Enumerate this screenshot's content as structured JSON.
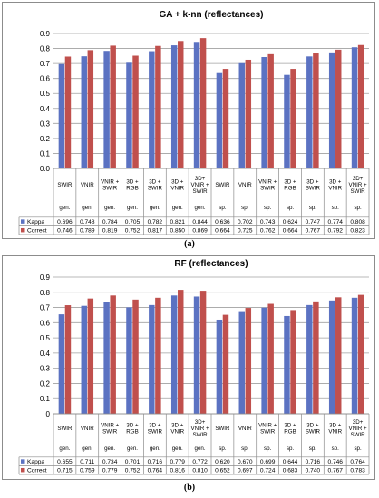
{
  "chart_data": [
    {
      "type": "bar",
      "title": "GA + k-nn (reflectances)",
      "ylim": [
        0,
        0.9
      ],
      "yticks": [
        "0.0",
        "0.1",
        "0.2",
        "0.3",
        "0.4",
        "0.5",
        "0.6",
        "0.7",
        "0.8",
        "0.9"
      ],
      "grid": true,
      "legend": "data-table",
      "categories": [
        {
          "name": [
            "SWIR"
          ],
          "group": "gen."
        },
        {
          "name": [
            "VNIR"
          ],
          "group": "gen."
        },
        {
          "name": [
            "VNIR +",
            "SWIR"
          ],
          "group": "gen."
        },
        {
          "name": [
            "3D +",
            "RGB"
          ],
          "group": "gen."
        },
        {
          "name": [
            "3D +",
            "SWIR"
          ],
          "group": "gen."
        },
        {
          "name": [
            "3D +",
            "VNIR"
          ],
          "group": "gen."
        },
        {
          "name": [
            "3D+",
            "VNIR +",
            "SWIR"
          ],
          "group": "gen."
        },
        {
          "name": [
            "SWIR"
          ],
          "group": "sp."
        },
        {
          "name": [
            "VNIR"
          ],
          "group": "sp."
        },
        {
          "name": [
            "VNIR +",
            "SWIR"
          ],
          "group": "sp."
        },
        {
          "name": [
            "3D +",
            "RGB"
          ],
          "group": "sp."
        },
        {
          "name": [
            "3D +",
            "SWIR"
          ],
          "group": "sp."
        },
        {
          "name": [
            "3D +",
            "VNIR"
          ],
          "group": "sp."
        },
        {
          "name": [
            "3D+",
            "VNIR +",
            "SWIR"
          ],
          "group": "sp."
        }
      ],
      "series": [
        {
          "name": "Kappa",
          "color": "#5b72c2",
          "values": [
            0.696,
            0.748,
            0.784,
            0.705,
            0.782,
            0.821,
            0.844,
            0.636,
            0.702,
            0.743,
            0.624,
            0.747,
            0.774,
            0.808
          ]
        },
        {
          "name": "Correct",
          "color": "#c0504d",
          "values": [
            0.746,
            0.789,
            0.819,
            0.752,
            0.817,
            0.85,
            0.869,
            0.664,
            0.725,
            0.762,
            0.664,
            0.767,
            0.792,
            0.823
          ]
        }
      ]
    },
    {
      "type": "bar",
      "title": "RF (reflectances)",
      "ylim": [
        0,
        0.9
      ],
      "yticks": [
        "0",
        "0.1",
        "0.2",
        "0.3",
        "0.4",
        "0.5",
        "0.6",
        "0.7",
        "0.8",
        "0.9"
      ],
      "grid": true,
      "legend": "data-table",
      "categories": [
        {
          "name": [
            "SWIR"
          ],
          "group": "gen."
        },
        {
          "name": [
            "VNIR"
          ],
          "group": "gen."
        },
        {
          "name": [
            "VNIR +",
            "SWIR"
          ],
          "group": "gen."
        },
        {
          "name": [
            "3D +",
            "RGB"
          ],
          "group": "gen."
        },
        {
          "name": [
            "3D +",
            "SWIR"
          ],
          "group": "gen."
        },
        {
          "name": [
            "3D +",
            "VNIR"
          ],
          "group": "gen."
        },
        {
          "name": [
            "3D+",
            "VNIR +",
            "SWIR"
          ],
          "group": "gen."
        },
        {
          "name": [
            "SWIR"
          ],
          "group": "sp."
        },
        {
          "name": [
            "VNIR"
          ],
          "group": "sp."
        },
        {
          "name": [
            "VNIR +",
            "SWIR"
          ],
          "group": "sp."
        },
        {
          "name": [
            "3D +",
            "RGB"
          ],
          "group": "sp."
        },
        {
          "name": [
            "3D +",
            "SWIR"
          ],
          "group": "sp."
        },
        {
          "name": [
            "3D +",
            "VNIR"
          ],
          "group": "sp."
        },
        {
          "name": [
            "3D+",
            "VNIR +",
            "SWIR"
          ],
          "group": "sp."
        }
      ],
      "series": [
        {
          "name": "Kappa",
          "color": "#5b72c2",
          "values": [
            0.655,
            0.711,
            0.734,
            0.701,
            0.716,
            0.779,
            0.772,
            0.62,
            0.67,
            0.699,
            0.644,
            0.716,
            0.746,
            0.764
          ]
        },
        {
          "name": "Correct",
          "color": "#c0504d",
          "values": [
            0.715,
            0.759,
            0.779,
            0.752,
            0.764,
            0.816,
            0.81,
            0.652,
            0.697,
            0.724,
            0.683,
            0.74,
            0.767,
            0.783
          ]
        }
      ]
    }
  ],
  "captions": [
    "(a)",
    "(b)"
  ]
}
